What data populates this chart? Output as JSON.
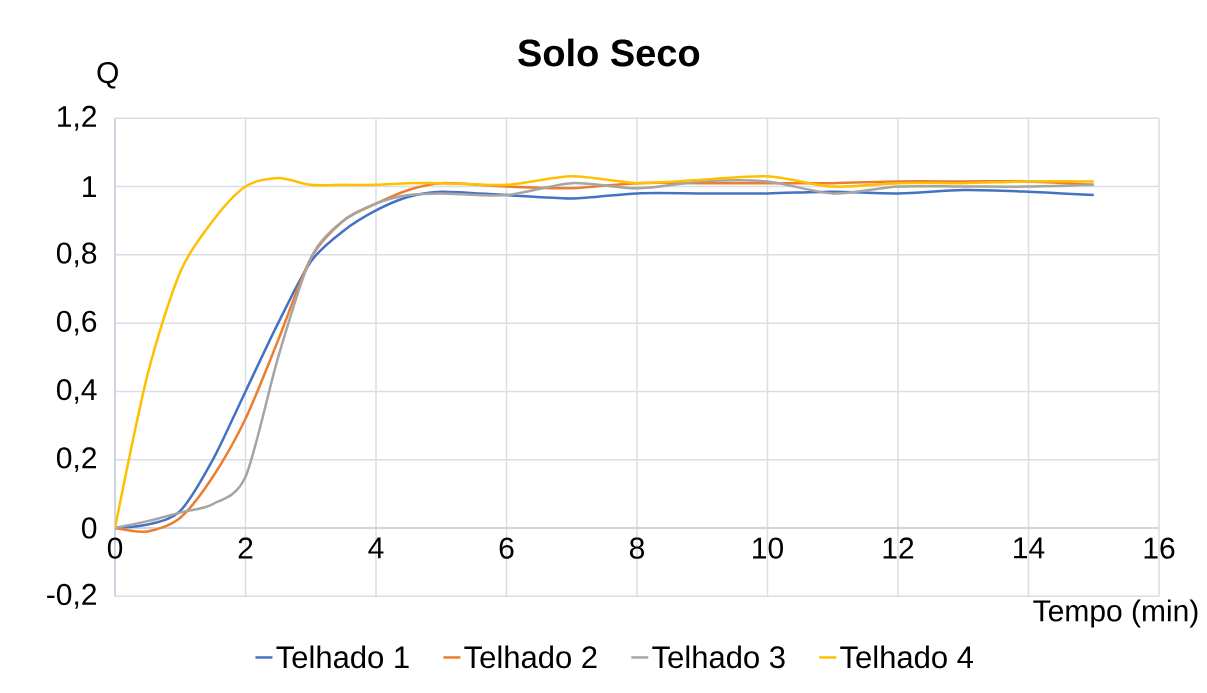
{
  "chart_data": {
    "type": "line",
    "title": "Solo Seco",
    "xlabel": "Tempo (min)",
    "ylabel": "Q",
    "x": [
      0,
      0.5,
      1,
      1.5,
      2,
      2.5,
      3,
      3.5,
      4,
      4.5,
      5,
      6,
      7,
      8,
      9,
      10,
      11,
      12,
      13,
      14,
      15
    ],
    "series": [
      {
        "name": "Telhado 1",
        "color": "#4472c4",
        "values": [
          0,
          0.01,
          0.05,
          0.2,
          0.4,
          0.6,
          0.78,
          0.87,
          0.93,
          0.97,
          0.985,
          0.975,
          0.965,
          0.98,
          0.98,
          0.98,
          0.985,
          0.98,
          0.99,
          0.985,
          0.975
        ]
      },
      {
        "name": "Telhado 2",
        "color": "#ed7d31",
        "values": [
          0,
          -0.01,
          0.03,
          0.15,
          0.32,
          0.55,
          0.79,
          0.9,
          0.95,
          0.99,
          1.01,
          1.0,
          0.995,
          1.01,
          1.01,
          1.01,
          1.01,
          1.015,
          1.015,
          1.015,
          1.005
        ]
      },
      {
        "name": "Telhado 3",
        "color": "#a5a5a5",
        "values": [
          0,
          0.02,
          0.045,
          0.07,
          0.15,
          0.5,
          0.79,
          0.9,
          0.95,
          0.975,
          0.98,
          0.975,
          1.01,
          0.995,
          1.015,
          1.015,
          0.98,
          1.0,
          1.0,
          1.0,
          1.005
        ]
      },
      {
        "name": "Telhado 4",
        "color": "#ffc000",
        "values": [
          0,
          0.45,
          0.75,
          0.9,
          1.0,
          1.025,
          1.005,
          1.005,
          1.005,
          1.01,
          1.01,
          1.005,
          1.03,
          1.01,
          1.02,
          1.03,
          1.0,
          1.01,
          1.01,
          1.015,
          1.015
        ]
      }
    ],
    "xlim": [
      0,
      16
    ],
    "xticks": [
      0,
      2,
      4,
      6,
      8,
      10,
      12,
      14,
      16
    ],
    "ylim": [
      -0.2,
      1.2
    ],
    "yticks": [
      {
        "value": -0.2,
        "label": "-0,2"
      },
      0,
      {
        "value": 0.2,
        "label": "0,2"
      },
      {
        "value": 0.4,
        "label": "0,4"
      },
      {
        "value": 0.6,
        "label": "0,6"
      },
      {
        "value": 0.8,
        "label": "0,8"
      },
      1,
      {
        "value": 1.2,
        "label": "1,2"
      }
    ],
    "grid": true,
    "legend": "bottom",
    "marker": "none",
    "line_style": "solid"
  }
}
